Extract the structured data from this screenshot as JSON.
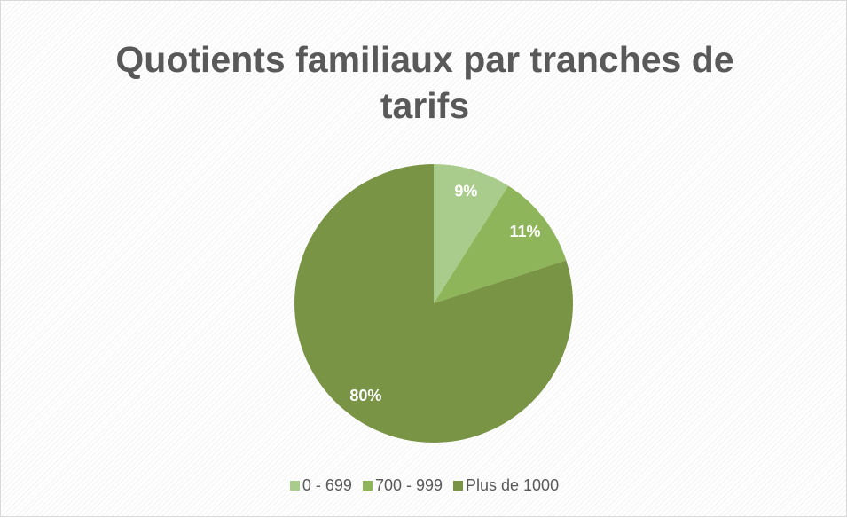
{
  "chart_data": {
    "type": "pie",
    "title": "Quotients familiaux par tranches de tarifs",
    "categories": [
      "0 - 699",
      "700 - 999",
      "Plus de 1000"
    ],
    "values": [
      9,
      11,
      80
    ],
    "value_labels": [
      "9%",
      "11%",
      "80%"
    ],
    "colors": [
      "#a9cc8c",
      "#8fb55a",
      "#7a9445"
    ]
  }
}
